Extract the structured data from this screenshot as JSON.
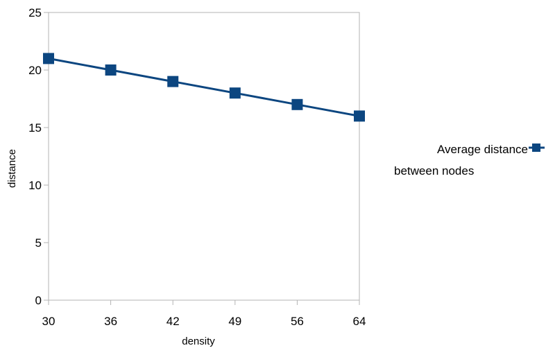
{
  "chart_data": {
    "type": "line",
    "title": "",
    "xlabel": "density",
    "ylabel": "distance",
    "categories": [
      "30",
      "36",
      "42",
      "49",
      "56",
      "64"
    ],
    "ylim": [
      0,
      25
    ],
    "yticks": [
      "0",
      "5",
      "10",
      "15",
      "20",
      "25"
    ],
    "grid": false,
    "legend_position": "right",
    "series": [
      {
        "name_lines": [
          "Average distance",
          "between nodes"
        ],
        "values": [
          21,
          20,
          19,
          18,
          17,
          16
        ],
        "color": "#0c4680",
        "marker": "square"
      }
    ]
  }
}
